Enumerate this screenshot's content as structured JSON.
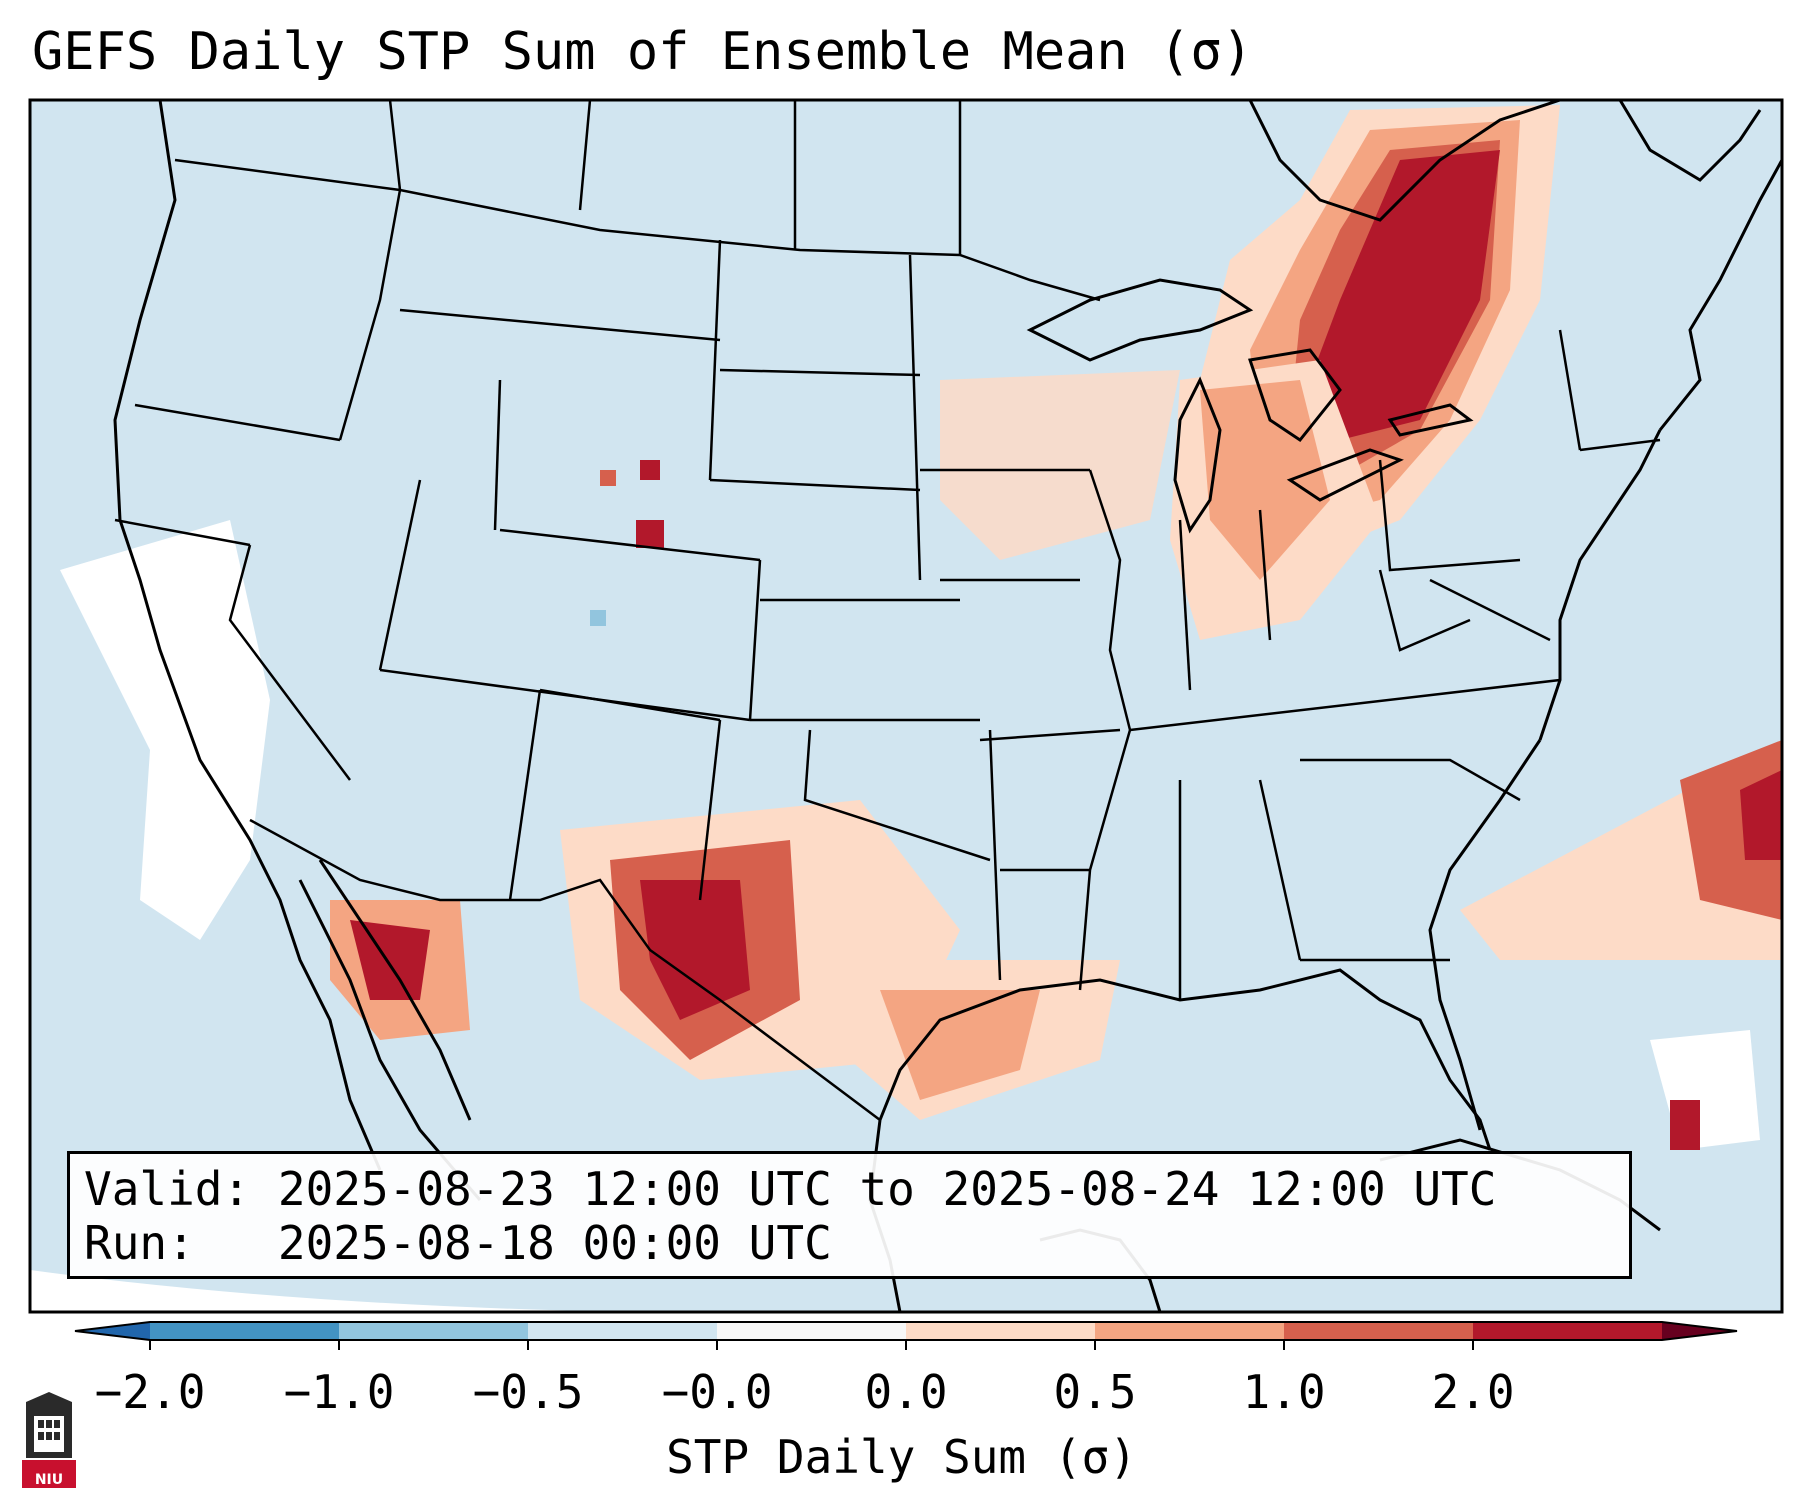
{
  "title": "GEFS Daily STP Sum of Ensemble Mean (σ)",
  "info": {
    "valid_label": "Valid:",
    "valid_value": "2025-08-23 12:00 UTC to 2025-08-24 12:00 UTC",
    "run_label": "Run:",
    "run_value": "2025-08-18 00:00 UTC"
  },
  "colorbar": {
    "label": "STP Daily Sum (σ)",
    "ticks": [
      "−2.0",
      "−1.0",
      "−0.5",
      "−0.0",
      "0.0",
      "0.5",
      "1.0",
      "2.0"
    ],
    "colors": [
      "#4393c3",
      "#92c5de",
      "#d1e5f0",
      "#f7f7f7",
      "#fddbc7",
      "#f4a582",
      "#d6604d",
      "#b2182b"
    ],
    "under_color": "#2166ac",
    "over_color": "#67001f"
  },
  "logo": {
    "text": "NIU",
    "color": "#c8102e"
  },
  "map_colors": {
    "ocean": "#d1e5f0",
    "land": "#d1e5f0",
    "border": "#000000"
  }
}
